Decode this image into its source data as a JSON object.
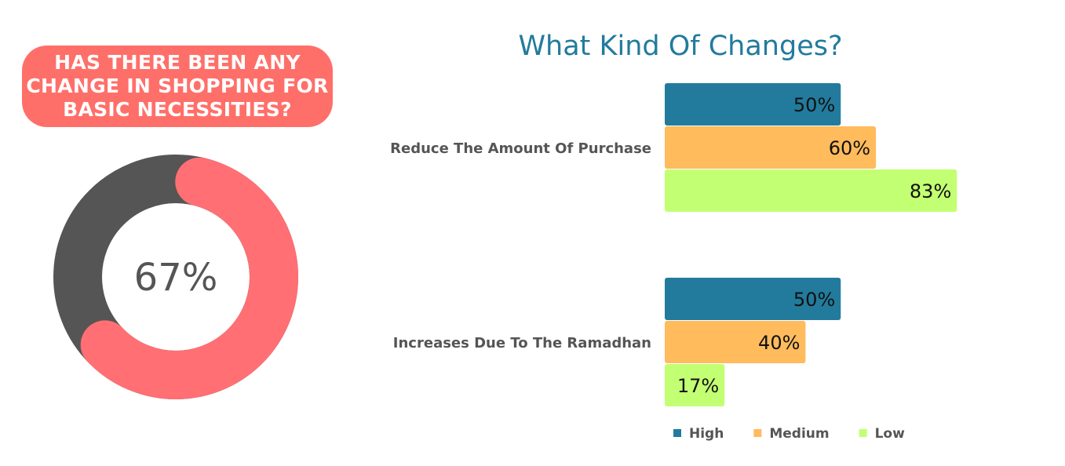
{
  "question": {
    "lines": [
      "HAS THERE BEEN ANY",
      "CHANGE IN SHOPPING FOR",
      "BASIC NECESSITIES?"
    ],
    "color": "#ff6f69"
  },
  "chart_data": [
    {
      "type": "pie",
      "variant": "donut",
      "values": [
        67,
        33
      ],
      "colors": [
        "#ff6f73",
        "#555555"
      ],
      "center_label": "67%"
    },
    {
      "type": "bar",
      "orientation": "horizontal",
      "title": "What Kind Of Changes?",
      "title_color": "#227b9d",
      "categories": [
        "Reduce The Amount Of Purchase",
        "Increases Due To The Ramadhan"
      ],
      "series": [
        {
          "name": "High",
          "color": "#227b9d",
          "values": [
            50,
            50
          ],
          "labels": [
            "50%",
            "50%"
          ]
        },
        {
          "name": "Medium",
          "color": "#ffbb5c",
          "values": [
            60,
            40
          ],
          "labels": [
            "60%",
            "40%"
          ]
        },
        {
          "name": "Low",
          "color": "#c3ff72",
          "values": [
            83,
            17
          ],
          "labels": [
            "83%",
            "17%"
          ]
        }
      ],
      "xlim": [
        0,
        100
      ],
      "grid": false,
      "legend": "bottom"
    }
  ]
}
